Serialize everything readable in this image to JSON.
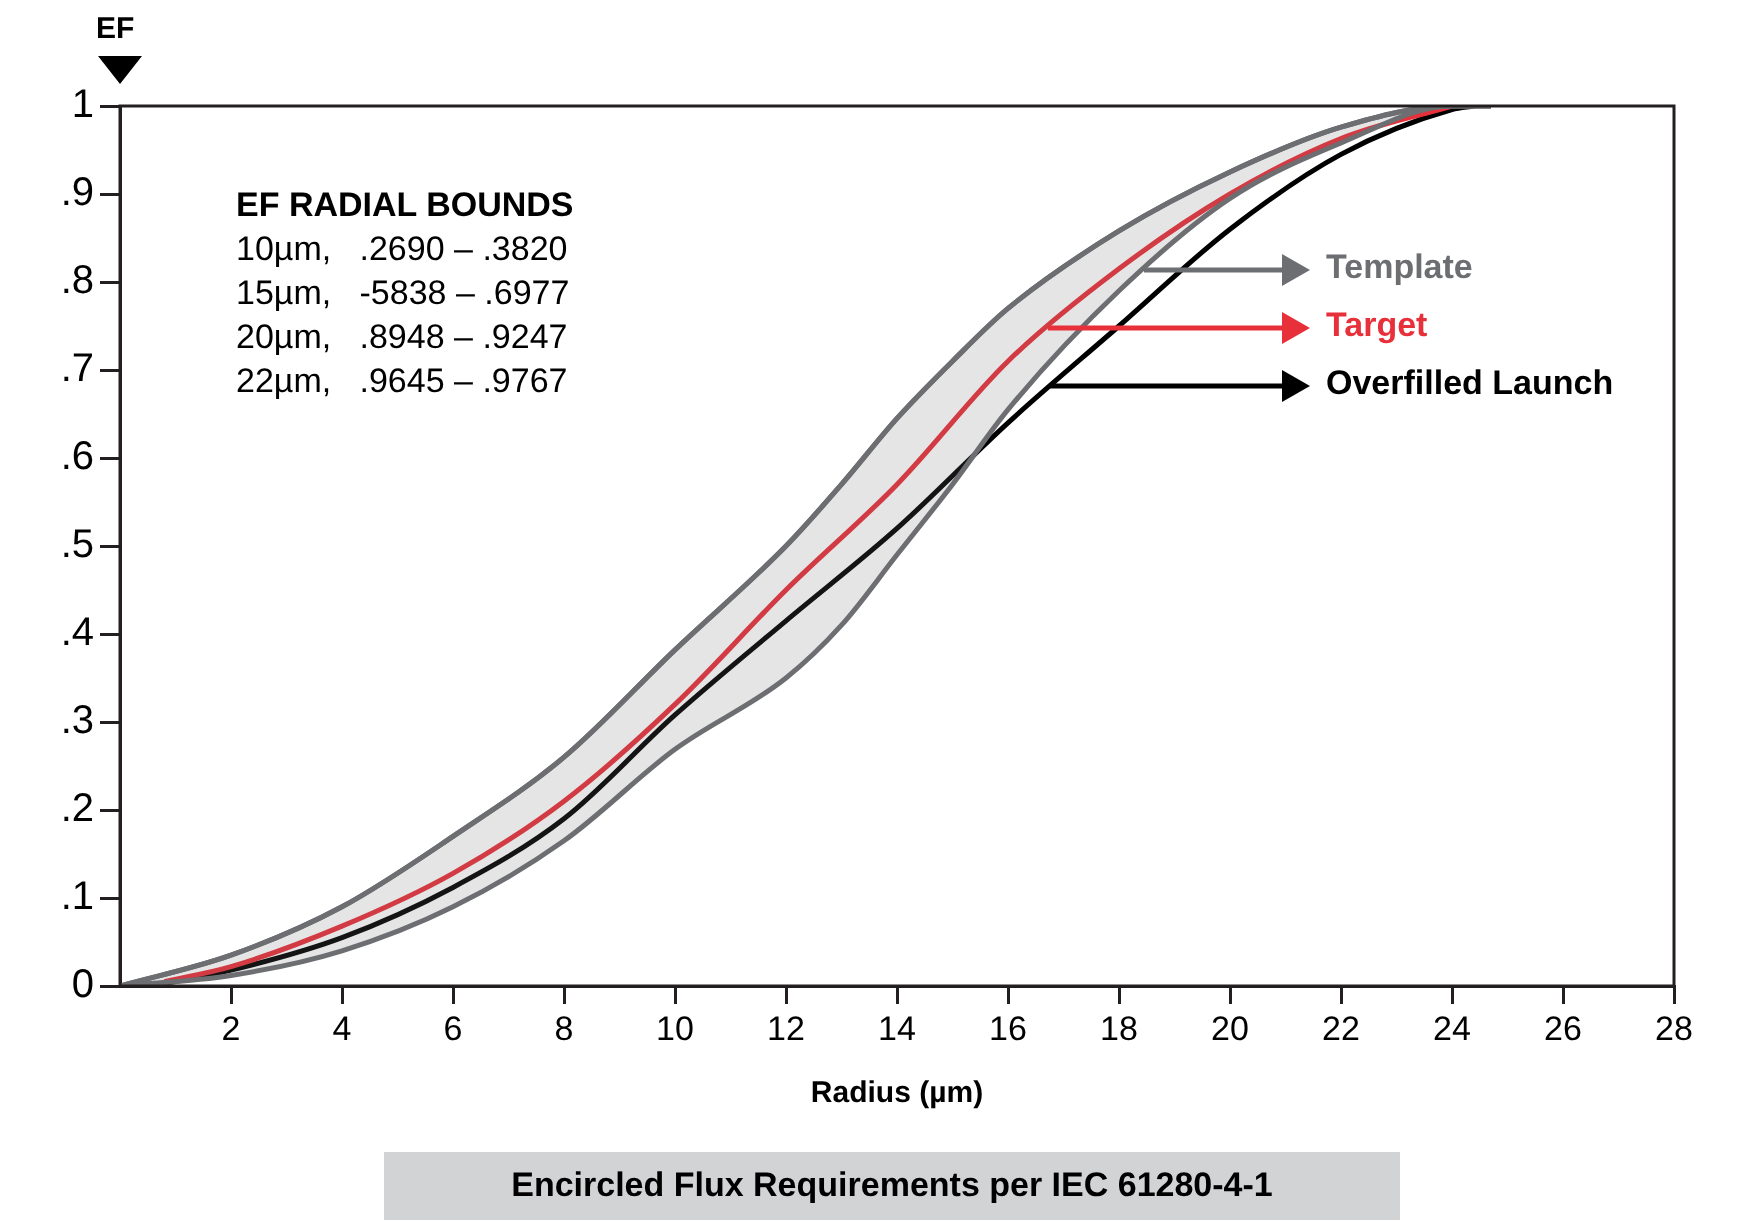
{
  "chart_data": {
    "type": "line",
    "title": "Encircled Flux Requirements per IEC 61280-4-1",
    "xlabel": "Radius (µm)",
    "ylabel": "EF",
    "annotations": [
      "EF RADIAL BOUNDS",
      "10µm,   .2690 – .3820",
      "15µm,   -5838 – .6977",
      "20µm,   .8948 – .9247",
      "22µm,   .9645 – .9767"
    ],
    "xlim": [
      0,
      28
    ],
    "ylim": [
      0,
      1
    ],
    "xticks": [
      2,
      4,
      6,
      8,
      10,
      12,
      14,
      16,
      18,
      20,
      22,
      24,
      26,
      28
    ],
    "yticks": [
      0,
      {
        "value": 0.1,
        "label": ".1"
      },
      {
        "value": 0.2,
        "label": ".2"
      },
      {
        "value": 0.3,
        "label": ".3"
      },
      {
        "value": 0.4,
        "label": ".4"
      },
      {
        "value": 0.5,
        "label": ".5"
      },
      {
        "value": 0.6,
        "label": ".6"
      },
      {
        "value": 0.7,
        "label": ".7"
      },
      {
        "value": 0.8,
        "label": ".8"
      },
      {
        "value": 0.9,
        "label": ".9"
      },
      1
    ],
    "grid": false,
    "legend": "right",
    "marker": "none",
    "line_style": "solid",
    "series": [
      {
        "name": "Template",
        "color": "#6d6e71",
        "x": [
          0,
          2,
          4,
          6,
          8,
          10,
          12,
          13,
          14,
          15,
          16,
          18,
          20,
          22,
          24,
          24.7
        ],
        "values": [
          0,
          0.035,
          0.09,
          0.17,
          0.26,
          0.382,
          0.5,
          0.57,
          0.645,
          0.71,
          0.77,
          0.858,
          0.925,
          0.976,
          1,
          1
        ],
        "lower": [
          0,
          0.012,
          0.04,
          0.09,
          0.165,
          0.269,
          0.35,
          0.41,
          0.49,
          0.57,
          0.655,
          0.79,
          0.895,
          0.958,
          1,
          1
        ],
        "upper": [
          0,
          0.035,
          0.09,
          0.17,
          0.26,
          0.382,
          0.5,
          0.57,
          0.645,
          0.71,
          0.77,
          0.858,
          0.925,
          0.976,
          1,
          1
        ]
      },
      {
        "name": "Target",
        "color": "#e8303a",
        "x": [
          0.8,
          2,
          4,
          6,
          8,
          10,
          12,
          14,
          16,
          18,
          20,
          22,
          24
        ],
        "values": [
          0.005,
          0.022,
          0.068,
          0.128,
          0.21,
          0.32,
          0.45,
          0.57,
          0.71,
          0.815,
          0.9,
          0.963,
          1
        ]
      },
      {
        "name": "Overfilled Launch",
        "color": "#000000",
        "x": [
          0.8,
          2,
          4,
          6,
          8,
          10,
          12,
          14,
          16,
          18,
          20,
          22,
          24,
          24.4
        ],
        "values": [
          0.003,
          0.018,
          0.055,
          0.112,
          0.19,
          0.308,
          0.415,
          0.52,
          0.64,
          0.75,
          0.86,
          0.945,
          0.996,
          1
        ]
      }
    ]
  }
}
